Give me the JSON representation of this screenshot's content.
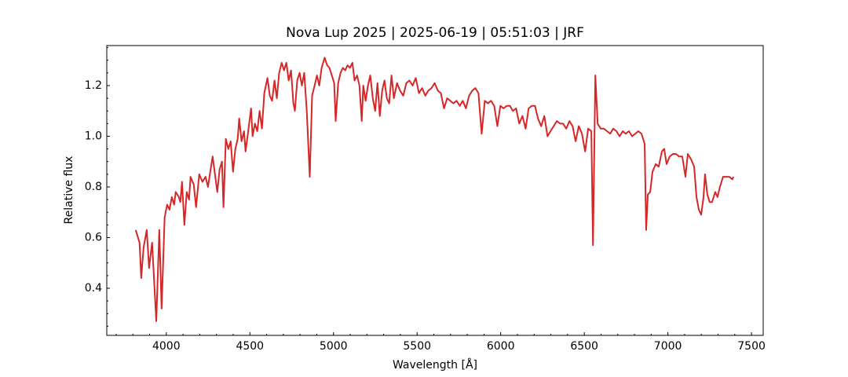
{
  "chart_data": {
    "type": "line",
    "title": "Nova Lup 2025 | 2025-06-19 | 05:51:03 | JRF",
    "xlabel": "Wavelength [Å]",
    "ylabel": "Relative flux",
    "xlim": [
      3644,
      7570
    ],
    "ylim": [
      0.214,
      1.358
    ],
    "xticks": [
      4000,
      4500,
      5000,
      5500,
      6000,
      6500,
      7000,
      7500
    ],
    "yticks": [
      {
        "value": 0.4,
        "label": "0.4"
      },
      {
        "value": 0.6,
        "label": "0.6"
      },
      {
        "value": 0.8,
        "label": "0.8"
      },
      {
        "value": 1.0,
        "label": "1.0"
      },
      {
        "value": 1.2,
        "label": "1.2"
      }
    ],
    "xminorticks": [
      3700,
      3800,
      3900,
      4100,
      4200,
      4300,
      4400,
      4600,
      4700,
      4800,
      4900,
      5100,
      5200,
      5300,
      5400,
      5600,
      5700,
      5800,
      5900,
      6100,
      6200,
      6300,
      6400,
      6600,
      6700,
      6800,
      6900,
      7100,
      7200,
      7300,
      7400
    ],
    "yminorticks": [
      0.25,
      0.3,
      0.35,
      0.45,
      0.5,
      0.55,
      0.65,
      0.7,
      0.75,
      0.85,
      0.9,
      0.95,
      1.05,
      1.1,
      1.15,
      1.25,
      1.3,
      1.35
    ],
    "series": [
      {
        "name": "Nova Lup 2025",
        "color": "#d62728",
        "x": [
          3817,
          3840,
          3850,
          3864,
          3883,
          3897,
          3915,
          3940,
          3958,
          3972,
          3990,
          4005,
          4019,
          4033,
          4047,
          4056,
          4075,
          4084,
          4094,
          4108,
          4122,
          4136,
          4145,
          4164,
          4178,
          4197,
          4216,
          4235,
          4249,
          4263,
          4277,
          4291,
          4305,
          4319,
          4333,
          4342,
          4356,
          4371,
          4385,
          4399,
          4413,
          4427,
          4436,
          4450,
          4465,
          4474,
          4488,
          4507,
          4516,
          4530,
          4544,
          4558,
          4572,
          4586,
          4605,
          4619,
          4633,
          4647,
          4661,
          4675,
          4690,
          4704,
          4718,
          4732,
          4746,
          4760,
          4769,
          4783,
          4797,
          4811,
          4825,
          4840,
          4858,
          4872,
          4887,
          4901,
          4915,
          4929,
          4947,
          4962,
          4976,
          4990,
          5004,
          5013,
          5028,
          5042,
          5056,
          5070,
          5084,
          5098,
          5113,
          5126,
          5141,
          5155,
          5169,
          5178,
          5192,
          5206,
          5220,
          5235,
          5249,
          5263,
          5277,
          5291,
          5305,
          5319,
          5333,
          5347,
          5361,
          5380,
          5398,
          5417,
          5436,
          5454,
          5473,
          5492,
          5511,
          5530,
          5549,
          5567,
          5586,
          5605,
          5624,
          5642,
          5661,
          5680,
          5698,
          5717,
          5736,
          5755,
          5773,
          5792,
          5811,
          5830,
          5848,
          5867,
          5886,
          5905,
          5923,
          5942,
          5961,
          5980,
          5998,
          6017,
          6036,
          6055,
          6073,
          6092,
          6111,
          6130,
          6149,
          6167,
          6186,
          6205,
          6223,
          6242,
          6261,
          6280,
          6298,
          6317,
          6336,
          6355,
          6373,
          6392,
          6411,
          6430,
          6448,
          6467,
          6486,
          6505,
          6523,
          6542,
          6552,
          6566,
          6580,
          6598,
          6617,
          6636,
          6655,
          6673,
          6692,
          6711,
          6730,
          6748,
          6767,
          6786,
          6805,
          6823,
          6842,
          6861,
          6870,
          6880,
          6894,
          6908,
          6927,
          6945,
          6964,
          6978,
          6992,
          7011,
          7030,
          7048,
          7067,
          7086,
          7105,
          7119,
          7138,
          7157,
          7171,
          7185,
          7199,
          7213,
          7222,
          7236,
          7250,
          7264,
          7283,
          7297,
          7311,
          7330,
          7349,
          7367,
          7386,
          7392
        ],
        "values": [
          0.63,
          0.58,
          0.44,
          0.56,
          0.63,
          0.48,
          0.58,
          0.27,
          0.63,
          0.32,
          0.68,
          0.73,
          0.71,
          0.76,
          0.73,
          0.78,
          0.76,
          0.74,
          0.82,
          0.65,
          0.78,
          0.75,
          0.84,
          0.81,
          0.72,
          0.85,
          0.82,
          0.84,
          0.8,
          0.86,
          0.92,
          0.85,
          0.78,
          0.87,
          0.9,
          0.72,
          0.99,
          0.95,
          0.98,
          0.86,
          0.95,
          0.99,
          1.07,
          0.98,
          1.02,
          0.94,
          1.01,
          1.11,
          1.0,
          1.05,
          1.02,
          1.1,
          1.03,
          1.17,
          1.23,
          1.16,
          1.14,
          1.22,
          1.15,
          1.25,
          1.29,
          1.26,
          1.29,
          1.22,
          1.26,
          1.13,
          1.1,
          1.22,
          1.25,
          1.2,
          1.25,
          1.1,
          0.84,
          1.16,
          1.2,
          1.24,
          1.2,
          1.27,
          1.31,
          1.28,
          1.27,
          1.24,
          1.21,
          1.06,
          1.21,
          1.25,
          1.27,
          1.26,
          1.28,
          1.27,
          1.29,
          1.22,
          1.24,
          1.2,
          1.06,
          1.2,
          1.14,
          1.2,
          1.24,
          1.15,
          1.1,
          1.21,
          1.08,
          1.18,
          1.22,
          1.15,
          1.13,
          1.24,
          1.15,
          1.21,
          1.18,
          1.16,
          1.21,
          1.22,
          1.2,
          1.23,
          1.17,
          1.19,
          1.16,
          1.18,
          1.19,
          1.21,
          1.18,
          1.17,
          1.11,
          1.15,
          1.14,
          1.13,
          1.14,
          1.12,
          1.14,
          1.11,
          1.16,
          1.18,
          1.19,
          1.17,
          1.01,
          1.14,
          1.13,
          1.14,
          1.12,
          1.04,
          1.12,
          1.11,
          1.12,
          1.12,
          1.1,
          1.11,
          1.05,
          1.08,
          1.03,
          1.11,
          1.12,
          1.12,
          1.07,
          1.04,
          1.08,
          1.0,
          1.02,
          1.04,
          1.06,
          1.05,
          1.05,
          1.03,
          1.06,
          1.04,
          0.98,
          1.04,
          1.01,
          0.94,
          1.03,
          1.02,
          0.57,
          1.24,
          1.05,
          1.03,
          1.03,
          1.02,
          1.01,
          1.03,
          1.02,
          1.0,
          1.02,
          1.01,
          1.02,
          1.0,
          1.01,
          1.02,
          1.01,
          0.97,
          0.63,
          0.77,
          0.78,
          0.86,
          0.89,
          0.88,
          0.94,
          0.95,
          0.89,
          0.92,
          0.93,
          0.93,
          0.92,
          0.92,
          0.84,
          0.93,
          0.91,
          0.88,
          0.76,
          0.71,
          0.69,
          0.76,
          0.85,
          0.77,
          0.74,
          0.74,
          0.78,
          0.76,
          0.8,
          0.84,
          0.84,
          0.84,
          0.83,
          0.84
        ]
      }
    ]
  }
}
